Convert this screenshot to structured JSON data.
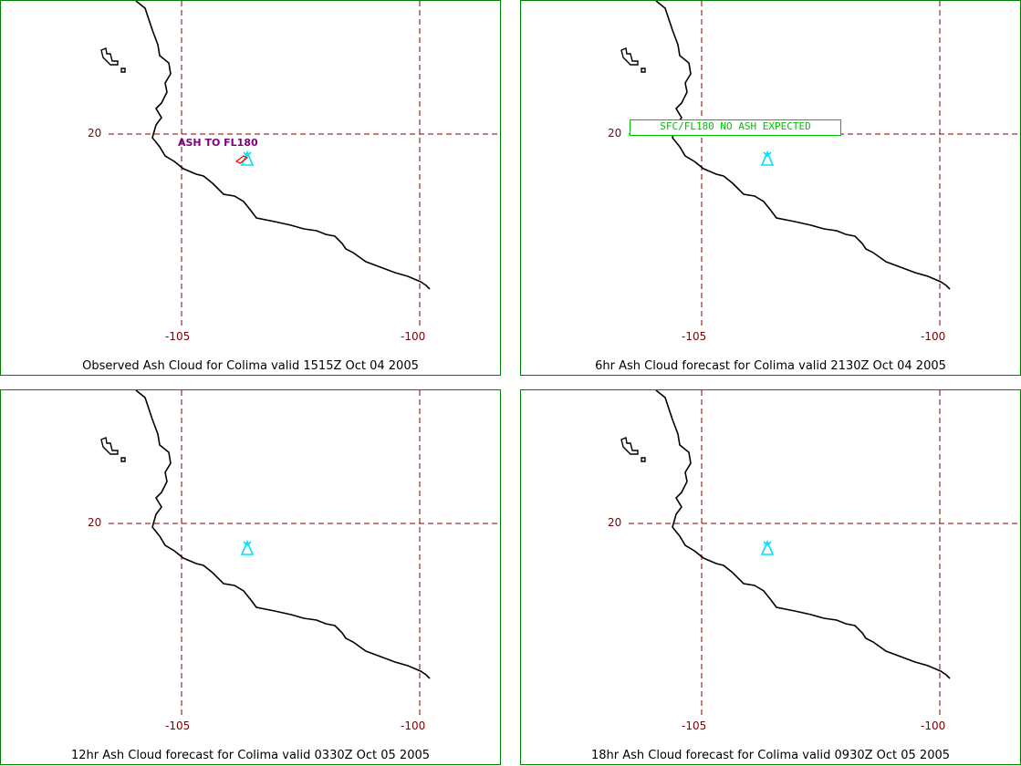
{
  "colors": {
    "frame": "#008000",
    "grid": "#800000",
    "coast": "#000000",
    "volcano": "#00e0ff",
    "ash_label": "#800080",
    "note": "#00c000"
  },
  "icons": {
    "volcano": "volcano-triangle-icon"
  },
  "panels": [
    {
      "caption": "Observed Ash Cloud for Colima valid 1515Z Oct 04 2005",
      "lat_label": "20",
      "lon_left_label": "-105",
      "lon_right_label": "-100",
      "ash_label": "ASH TO FL180"
    },
    {
      "caption": "6hr Ash Cloud forecast for Colima valid 2130Z Oct 04 2005",
      "lat_label": "20",
      "lon_left_label": "-105",
      "lon_right_label": "-100",
      "note": "SFC/FL180 NO ASH EXPECTED"
    },
    {
      "caption": "12hr Ash Cloud forecast for Colima valid 0330Z Oct 05 2005",
      "lat_label": "20",
      "lon_left_label": "-105",
      "lon_right_label": "-100"
    },
    {
      "caption": "18hr Ash Cloud forecast for Colima valid 0930Z Oct 05 2005",
      "lat_label": "20",
      "lon_left_label": "-105",
      "lon_right_label": "-100"
    }
  ]
}
